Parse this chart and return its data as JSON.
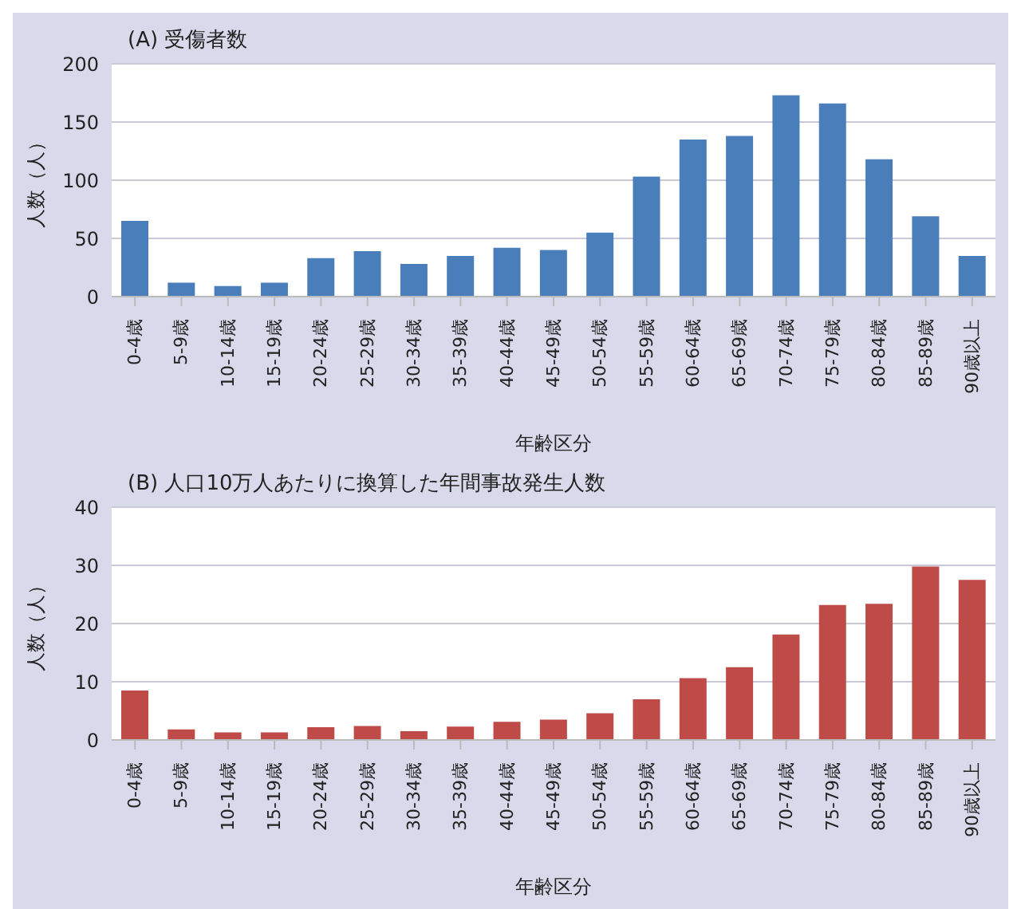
{
  "chart_data": [
    {
      "type": "bar",
      "title": "(A) 受傷者数",
      "xlabel": "年齢区分",
      "ylabel": "人数（人）",
      "categories": [
        "0-4歳",
        "5-9歳",
        "10-14歳",
        "15-19歳",
        "20-24歳",
        "25-29歳",
        "30-34歳",
        "35-39歳",
        "40-44歳",
        "45-49歳",
        "50-54歳",
        "55-59歳",
        "60-64歳",
        "65-69歳",
        "70-74歳",
        "75-79歳",
        "80-84歳",
        "85-89歳",
        "90歳以上"
      ],
      "values": [
        65,
        12,
        9,
        12,
        33,
        39,
        28,
        35,
        42,
        40,
        55,
        103,
        135,
        138,
        173,
        166,
        118,
        69,
        35
      ],
      "color": "#4a7ebb",
      "ylim": [
        0,
        200
      ],
      "yticks": [
        0,
        50,
        100,
        150,
        200
      ],
      "grid": "y",
      "legend": false
    },
    {
      "type": "bar",
      "title": "(B) 人口10万人あたりに換算した年間事故発生人数",
      "xlabel": "年齢区分",
      "ylabel": "人数（人）",
      "categories": [
        "0-4歳",
        "5-9歳",
        "10-14歳",
        "15-19歳",
        "20-24歳",
        "25-29歳",
        "30-34歳",
        "35-39歳",
        "40-44歳",
        "45-49歳",
        "50-54歳",
        "55-59歳",
        "60-64歳",
        "65-69歳",
        "70-74歳",
        "75-79歳",
        "80-84歳",
        "85-89歳",
        "90歳以上"
      ],
      "values": [
        8.5,
        1.8,
        1.3,
        1.3,
        2.2,
        2.4,
        1.5,
        2.3,
        3.1,
        3.5,
        4.6,
        7.0,
        10.6,
        12.5,
        18.1,
        23.2,
        23.4,
        29.8,
        27.5
      ],
      "color": "#be4b48",
      "ylim": [
        0,
        40
      ],
      "yticks": [
        0,
        10,
        20,
        30,
        40
      ],
      "grid": "y",
      "legend": false
    }
  ]
}
